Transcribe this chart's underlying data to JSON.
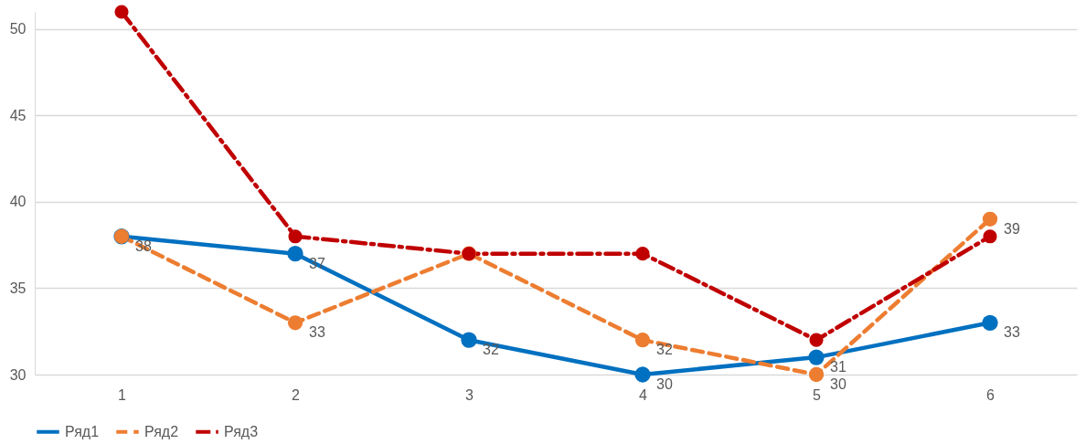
{
  "chart_data": {
    "type": "line",
    "categories": [
      "1",
      "2",
      "3",
      "4",
      "5",
      "6"
    ],
    "series": [
      {
        "name": "Ряд1",
        "color": "#0070c0",
        "line_style": "solid",
        "values": [
          38,
          37,
          32,
          30,
          31,
          33
        ],
        "value_labels": [
          "38",
          "37",
          "32",
          "30",
          "31",
          "33"
        ]
      },
      {
        "name": "Ряд2",
        "color": "#ed7d31",
        "line_style": "dashed",
        "values": [
          38,
          33,
          37,
          32,
          30,
          39
        ],
        "value_labels": [
          null,
          "33",
          null,
          "32",
          "30",
          "39"
        ]
      },
      {
        "name": "Ряд3",
        "color": "#c00000",
        "line_style": "dotted",
        "values": [
          51,
          38,
          37,
          37,
          32,
          38
        ]
      }
    ],
    "ylim": [
      30,
      51
    ],
    "yticks": [
      30,
      35,
      40,
      45,
      50
    ],
    "grid": "y",
    "legend": "bottom",
    "marker": "circle"
  }
}
